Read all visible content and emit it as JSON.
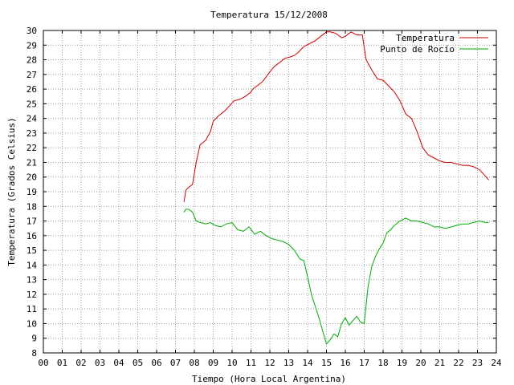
{
  "chart_data": {
    "type": "line",
    "title": "Temperatura 15/12/2008",
    "xlabel": "Tiempo (Hora Local Argentina)",
    "ylabel": "Temperatura (Grados Celsius)",
    "xlim": [
      0,
      24
    ],
    "ylim": [
      8,
      30
    ],
    "grid": true,
    "legend_position": "top-right",
    "x_ticks": [
      "00",
      "01",
      "02",
      "03",
      "04",
      "05",
      "06",
      "07",
      "08",
      "09",
      "10",
      "11",
      "12",
      "13",
      "14",
      "15",
      "16",
      "17",
      "18",
      "19",
      "20",
      "21",
      "22",
      "23",
      "24"
    ],
    "y_ticks": [
      "8",
      "9",
      "10",
      "11",
      "12",
      "13",
      "14",
      "15",
      "16",
      "17",
      "18",
      "19",
      "20",
      "21",
      "22",
      "23",
      "24",
      "25",
      "26",
      "27",
      "28",
      "29",
      "30"
    ],
    "series": [
      {
        "name": "Temperatura",
        "color": "#cc0000",
        "x": [
          7.45,
          7.55,
          7.7,
          7.9,
          8.1,
          8.3,
          8.6,
          8.85,
          9.0,
          9.3,
          9.6,
          9.9,
          10.1,
          10.4,
          10.7,
          11.0,
          11.1,
          11.3,
          11.6,
          11.9,
          12.2,
          12.5,
          12.8,
          13.1,
          13.3,
          13.5,
          13.8,
          14.1,
          14.4,
          14.7,
          15.0,
          15.2,
          15.5,
          15.8,
          16.0,
          16.3,
          16.6,
          16.9,
          17.1,
          17.4,
          17.7,
          18.0,
          18.3,
          18.6,
          18.9,
          19.2,
          19.5,
          19.8,
          20.1,
          20.4,
          20.7,
          21.0,
          21.3,
          21.6,
          21.9,
          22.2,
          22.5,
          22.8,
          23.1,
          23.4,
          23.6
        ],
        "values": [
          18.3,
          19.1,
          19.3,
          19.5,
          21.0,
          22.2,
          22.5,
          23.1,
          23.8,
          24.2,
          24.5,
          24.9,
          25.2,
          25.3,
          25.5,
          25.8,
          26.0,
          26.2,
          26.5,
          27.0,
          27.5,
          27.8,
          28.1,
          28.2,
          28.3,
          28.5,
          28.9,
          29.1,
          29.3,
          29.6,
          29.9,
          29.9,
          29.8,
          29.5,
          29.6,
          29.9,
          29.7,
          29.7,
          28.0,
          27.3,
          26.7,
          26.6,
          26.2,
          25.8,
          25.2,
          24.3,
          24.0,
          23.1,
          22.0,
          21.5,
          21.3,
          21.1,
          21.0,
          21.0,
          20.9,
          20.8,
          20.8,
          20.7,
          20.5,
          20.1,
          19.8
        ]
      },
      {
        "name": "Punto de Rocío",
        "color": "#00aa00",
        "x": [
          7.45,
          7.55,
          7.7,
          7.9,
          8.1,
          8.3,
          8.6,
          8.85,
          9.1,
          9.4,
          9.7,
          10.0,
          10.3,
          10.6,
          10.9,
          11.2,
          11.5,
          11.8,
          12.1,
          12.4,
          12.7,
          13.0,
          13.3,
          13.6,
          13.8,
          14.0,
          14.2,
          14.4,
          14.6,
          14.8,
          15.0,
          15.2,
          15.4,
          15.6,
          15.8,
          16.0,
          16.2,
          16.4,
          16.6,
          16.8,
          17.0,
          17.2,
          17.4,
          17.6,
          17.8,
          18.0,
          18.2,
          18.4,
          18.6,
          18.9,
          19.2,
          19.5,
          19.8,
          20.1,
          20.4,
          20.7,
          21.0,
          21.3,
          21.6,
          21.9,
          22.2,
          22.5,
          22.8,
          23.1,
          23.4,
          23.6
        ],
        "values": [
          17.6,
          17.8,
          17.8,
          17.6,
          17.0,
          16.9,
          16.8,
          16.9,
          16.7,
          16.6,
          16.8,
          16.9,
          16.4,
          16.3,
          16.6,
          16.1,
          16.3,
          16.0,
          15.8,
          15.7,
          15.6,
          15.4,
          15.0,
          14.4,
          14.3,
          13.2,
          12.0,
          11.2,
          10.4,
          9.5,
          8.6,
          8.9,
          9.3,
          9.1,
          10.0,
          10.4,
          9.9,
          10.2,
          10.5,
          10.1,
          10.0,
          12.5,
          13.9,
          14.6,
          15.1,
          15.5,
          16.2,
          16.4,
          16.7,
          17.0,
          17.2,
          17.0,
          17.0,
          16.9,
          16.8,
          16.6,
          16.6,
          16.5,
          16.6,
          16.7,
          16.8,
          16.8,
          16.9,
          17.0,
          16.9,
          16.9
        ]
      }
    ]
  }
}
